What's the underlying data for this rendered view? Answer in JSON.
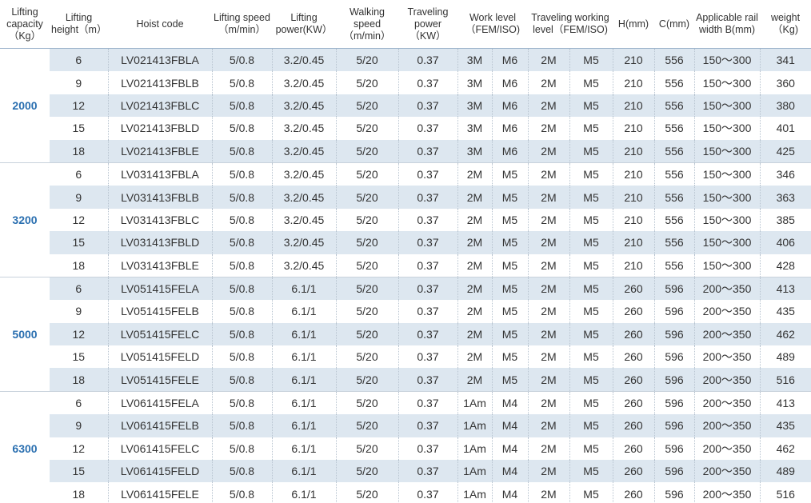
{
  "table": {
    "headers": [
      "Lifting capacity（Kg）",
      "Lifting height（m）",
      "Hoist code",
      "Lifting speed（m/min）",
      "Lifting power(KW）",
      "Walking speed（m/min）",
      "Traveling power（KW）",
      "Work level（FEM/ISO)",
      "Traveling working level（FEM/ISO)",
      "H(mm)",
      "C(mm)",
      "Applicable rail width B(mm)",
      "weight（Kg)"
    ],
    "groups": [
      {
        "capacity": "2000",
        "rows": [
          [
            "6",
            "LV021413FBLA",
            "5/0.8",
            "3.2/0.45",
            "5/20",
            "0.37",
            "3M",
            "M6",
            "2M",
            "M5",
            "210",
            "556",
            "150～300",
            "341"
          ],
          [
            "9",
            "LV021413FBLB",
            "5/0.8",
            "3.2/0.45",
            "5/20",
            "0.37",
            "3M",
            "M6",
            "2M",
            "M5",
            "210",
            "556",
            "150～300",
            "360"
          ],
          [
            "12",
            "LV021413FBLC",
            "5/0.8",
            "3.2/0.45",
            "5/20",
            "0.37",
            "3M",
            "M6",
            "2M",
            "M5",
            "210",
            "556",
            "150～300",
            "380"
          ],
          [
            "15",
            "LV021413FBLD",
            "5/0.8",
            "3.2/0.45",
            "5/20",
            "0.37",
            "3M",
            "M6",
            "2M",
            "M5",
            "210",
            "556",
            "150～300",
            "401"
          ],
          [
            "18",
            "LV021413FBLE",
            "5/0.8",
            "3.2/0.45",
            "5/20",
            "0.37",
            "3M",
            "M6",
            "2M",
            "M5",
            "210",
            "556",
            "150～300",
            "425"
          ]
        ]
      },
      {
        "capacity": "3200",
        "rows": [
          [
            "6",
            "LV031413FBLA",
            "5/0.8",
            "3.2/0.45",
            "5/20",
            "0.37",
            "2M",
            "M5",
            "2M",
            "M5",
            "210",
            "556",
            "150～300",
            "346"
          ],
          [
            "9",
            "LV031413FBLB",
            "5/0.8",
            "3.2/0.45",
            "5/20",
            "0.37",
            "2M",
            "M5",
            "2M",
            "M5",
            "210",
            "556",
            "150～300",
            "363"
          ],
          [
            "12",
            "LV031413FBLC",
            "5/0.8",
            "3.2/0.45",
            "5/20",
            "0.37",
            "2M",
            "M5",
            "2M",
            "M5",
            "210",
            "556",
            "150～300",
            "385"
          ],
          [
            "15",
            "LV031413FBLD",
            "5/0.8",
            "3.2/0.45",
            "5/20",
            "0.37",
            "2M",
            "M5",
            "2M",
            "M5",
            "210",
            "556",
            "150～300",
            "406"
          ],
          [
            "18",
            "LV031413FBLE",
            "5/0.8",
            "3.2/0.45",
            "5/20",
            "0.37",
            "2M",
            "M5",
            "2M",
            "M5",
            "210",
            "556",
            "150～300",
            "428"
          ]
        ]
      },
      {
        "capacity": "5000",
        "rows": [
          [
            "6",
            "LV051415FELA",
            "5/0.8",
            "6.1/1",
            "5/20",
            "0.37",
            "2M",
            "M5",
            "2M",
            "M5",
            "260",
            "596",
            "200～350",
            "413"
          ],
          [
            "9",
            "LV051415FELB",
            "5/0.8",
            "6.1/1",
            "5/20",
            "0.37",
            "2M",
            "M5",
            "2M",
            "M5",
            "260",
            "596",
            "200～350",
            "435"
          ],
          [
            "12",
            "LV051415FELC",
            "5/0.8",
            "6.1/1",
            "5/20",
            "0.37",
            "2M",
            "M5",
            "2M",
            "M5",
            "260",
            "596",
            "200～350",
            "462"
          ],
          [
            "15",
            "LV051415FELD",
            "5/0.8",
            "6.1/1",
            "5/20",
            "0.37",
            "2M",
            "M5",
            "2M",
            "M5",
            "260",
            "596",
            "200～350",
            "489"
          ],
          [
            "18",
            "LV051415FELE",
            "5/0.8",
            "6.1/1",
            "5/20",
            "0.37",
            "2M",
            "M5",
            "2M",
            "M5",
            "260",
            "596",
            "200～350",
            "516"
          ]
        ]
      },
      {
        "capacity": "6300",
        "rows": [
          [
            "6",
            "LV061415FELA",
            "5/0.8",
            "6.1/1",
            "5/20",
            "0.37",
            "1Am",
            "M4",
            "2M",
            "M5",
            "260",
            "596",
            "200～350",
            "413"
          ],
          [
            "9",
            "LV061415FELB",
            "5/0.8",
            "6.1/1",
            "5/20",
            "0.37",
            "1Am",
            "M4",
            "2M",
            "M5",
            "260",
            "596",
            "200～350",
            "435"
          ],
          [
            "12",
            "LV061415FELC",
            "5/0.8",
            "6.1/1",
            "5/20",
            "0.37",
            "1Am",
            "M4",
            "2M",
            "M5",
            "260",
            "596",
            "200～350",
            "462"
          ],
          [
            "15",
            "LV061415FELD",
            "5/0.8",
            "6.1/1",
            "5/20",
            "0.37",
            "1Am",
            "M4",
            "2M",
            "M5",
            "260",
            "596",
            "200～350",
            "489"
          ],
          [
            "18",
            "LV061415FELE",
            "5/0.8",
            "6.1/1",
            "5/20",
            "0.37",
            "1Am",
            "M4",
            "2M",
            "M5",
            "260",
            "596",
            "200～350",
            "516"
          ]
        ]
      }
    ]
  }
}
